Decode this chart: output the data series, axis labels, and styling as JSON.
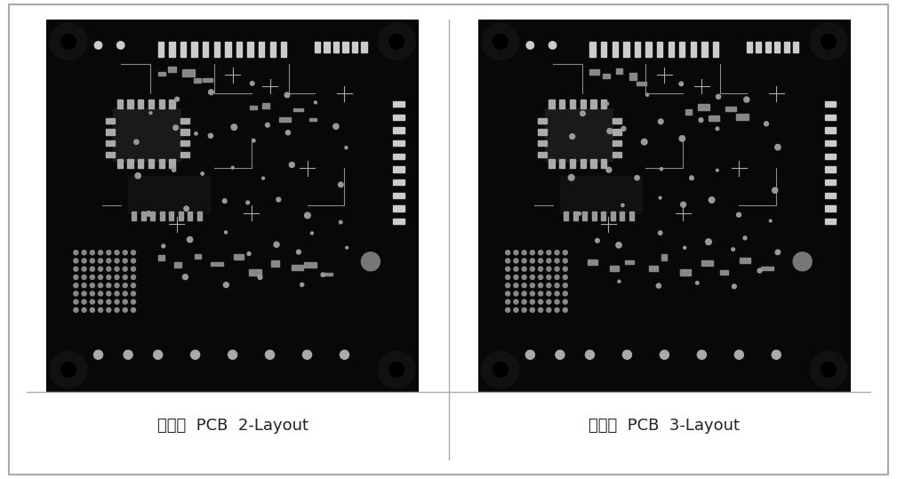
{
  "background_color": "#ffffff",
  "border_color": "#333333",
  "pcb_bg_color": "#000000",
  "pcb_border_color": "#111111",
  "caption_left": "단말기  PCB  2-Layout",
  "caption_right": "단말기  PCB  3-Layout",
  "caption_fontsize": 13,
  "caption_color": "#222222",
  "fig_width": 10.09,
  "fig_height": 5.39,
  "outer_border_color": "#aaaaaa",
  "divider_color": "#aaaaaa",
  "component_color": "#ffffff",
  "component_alpha": 0.85
}
